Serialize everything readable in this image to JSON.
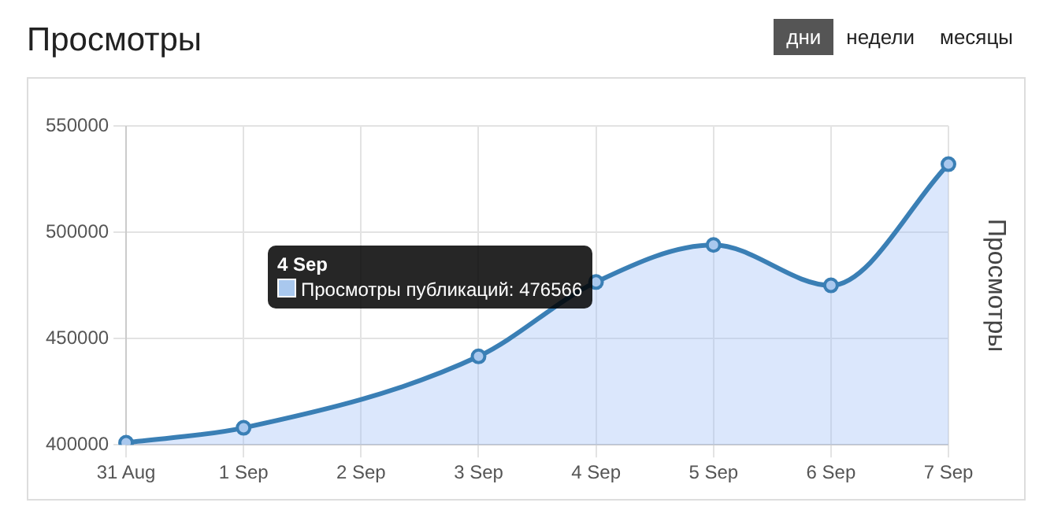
{
  "chart_data": {
    "type": "area",
    "title": "Просмотры",
    "ylabel": "Просмотры",
    "categories": [
      "31 Aug",
      "1 Sep",
      "2 Sep",
      "3 Sep",
      "4 Sep",
      "5 Sep",
      "6 Sep",
      "7 Sep"
    ],
    "series": [
      {
        "color": "#3a7fb5",
        "values": [
          401000,
          408000,
          null,
          441600,
          476566,
          494000,
          475000,
          532000
        ]
      }
    ],
    "ylim": [
      400000,
      550000
    ],
    "yticks": [
      400000,
      450000,
      500000,
      550000
    ],
    "grid": true,
    "legend": false,
    "marker": "circle",
    "line_style": "solid",
    "annotations": [
      "дни",
      "недели",
      "месяцы",
      "4 Sep",
      "Просмотры публикаций: 476566"
    ]
  }
}
